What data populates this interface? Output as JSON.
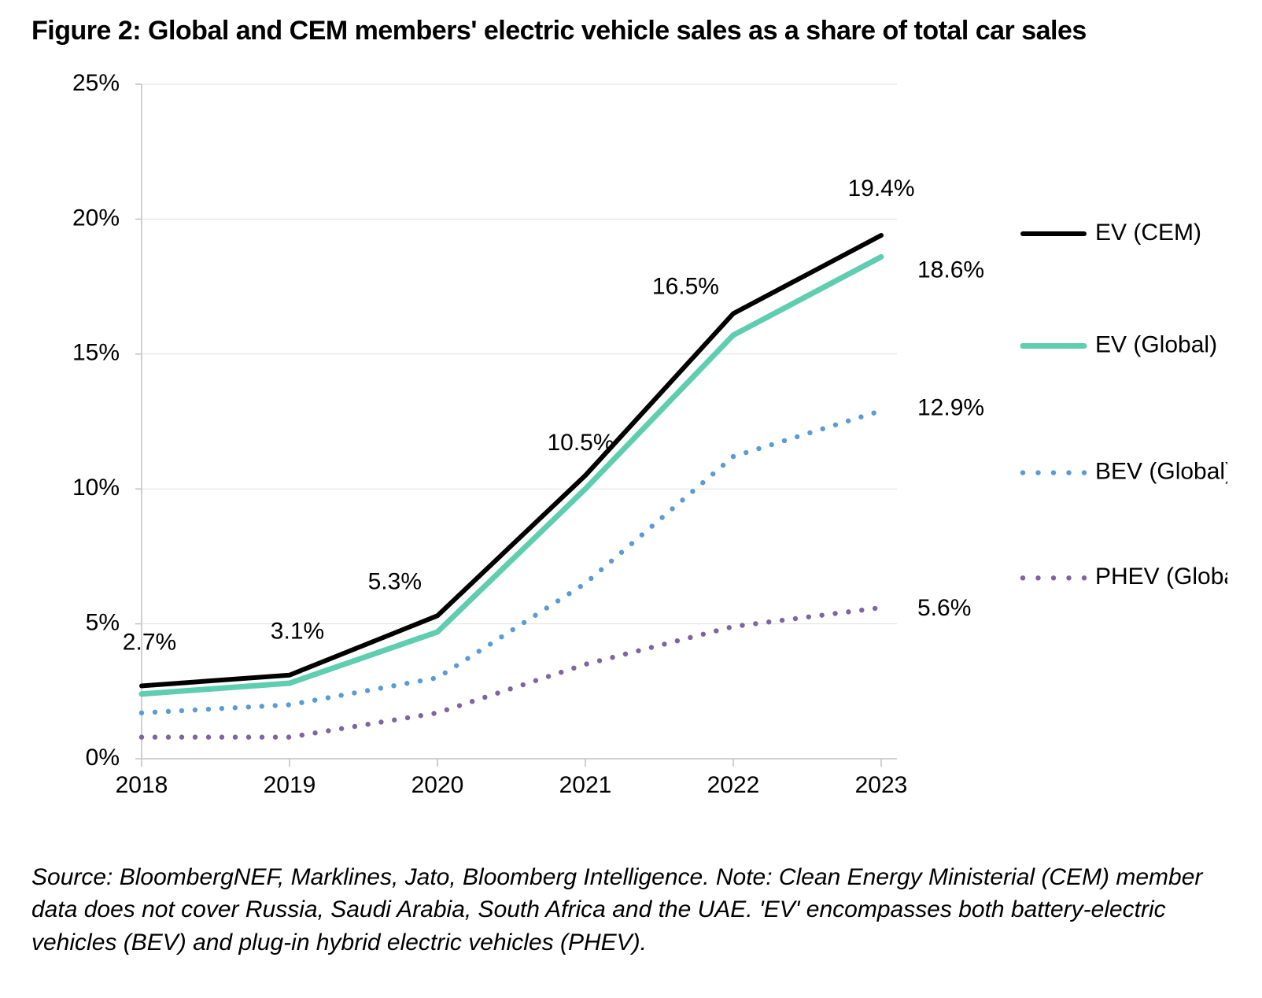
{
  "title": "Figure 2: Global and CEM members' electric vehicle sales as a share of total car sales",
  "caption": "Source: BloombergNEF, Marklines, Jato, Bloomberg Intelligence. Note: Clean Energy Ministerial (CEM) member data does not cover Russia, Saudi Arabia, South Africa and the UAE. 'EV' encompasses both battery-electric vehicles (BEV) and plug-in hybrid electric vehicles (PHEV).",
  "chart": {
    "type": "line",
    "background_color": "#ffffff",
    "grid_color": "#e0e0e0",
    "axis_color": "#d0d0d0",
    "tick_color": "#c0c0c0",
    "label_color": "#000000",
    "label_fontsize_pt": 22,
    "title_fontsize_pt": 26,
    "x": {
      "categories": [
        "2018",
        "2019",
        "2020",
        "2021",
        "2022",
        "2023"
      ]
    },
    "y": {
      "min": 0,
      "max": 25,
      "tick_step": 5,
      "unit": "%",
      "ticks": [
        "0%",
        "5%",
        "10%",
        "15%",
        "20%",
        "25%"
      ]
    },
    "series": [
      {
        "name": "EV (CEM)",
        "color": "#000000",
        "style": "solid",
        "line_width": 6,
        "values": [
          2.7,
          3.1,
          5.3,
          10.5,
          16.5,
          19.4
        ],
        "point_labels": [
          "2.7%",
          "3.1%",
          "5.3%",
          "10.5%",
          "16.5%",
          "19.4%"
        ],
        "end_label": "19.4%"
      },
      {
        "name": "EV (Global)",
        "color": "#5ecdb0",
        "style": "solid",
        "line_width": 7,
        "values": [
          2.4,
          2.8,
          4.7,
          10.0,
          15.7,
          18.6
        ],
        "end_label": "18.6%"
      },
      {
        "name": "BEV (Global)",
        "color": "#5b9bd5",
        "style": "dotted",
        "line_width": 6,
        "dot_radius": 3.2,
        "values": [
          1.7,
          2.0,
          3.0,
          6.5,
          11.2,
          12.9
        ],
        "end_label": "12.9%"
      },
      {
        "name": "PHEV (Global)",
        "color": "#8064a2",
        "style": "dotted",
        "line_width": 6,
        "dot_radius": 3.2,
        "values": [
          0.8,
          0.8,
          1.7,
          3.5,
          4.9,
          5.6
        ],
        "end_label": "5.6%"
      }
    ],
    "legend": {
      "position": "right",
      "items": [
        "EV (CEM)",
        "EV (Global)",
        "BEV (Global)",
        "PHEV (Global)"
      ]
    }
  }
}
